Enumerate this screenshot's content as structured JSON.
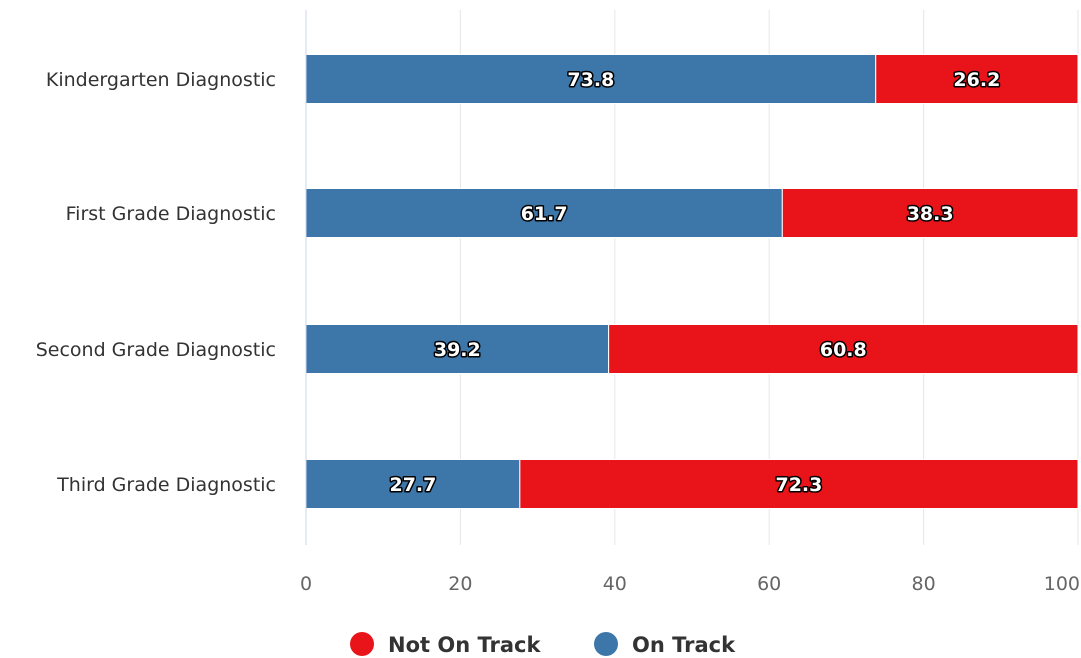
{
  "chart_data": {
    "type": "bar",
    "orientation": "horizontal",
    "stacked": true,
    "categories": [
      "Kindergarten Diagnostic",
      "First Grade Diagnostic",
      "Second Grade Diagnostic",
      "Third Grade Diagnostic"
    ],
    "series": [
      {
        "name": "On Track",
        "color": "#3d77a9",
        "values": [
          73.8,
          61.7,
          39.2,
          27.7
        ]
      },
      {
        "name": "Not On Track",
        "color": "#e8141a",
        "values": [
          26.2,
          38.3,
          60.8,
          72.3
        ]
      }
    ],
    "xlim": [
      0,
      100
    ],
    "xticks": [
      0,
      20,
      40,
      60,
      80,
      100
    ],
    "grid": true,
    "legend": {
      "position": "bottom-center",
      "order": [
        "Not On Track",
        "On Track"
      ]
    }
  }
}
